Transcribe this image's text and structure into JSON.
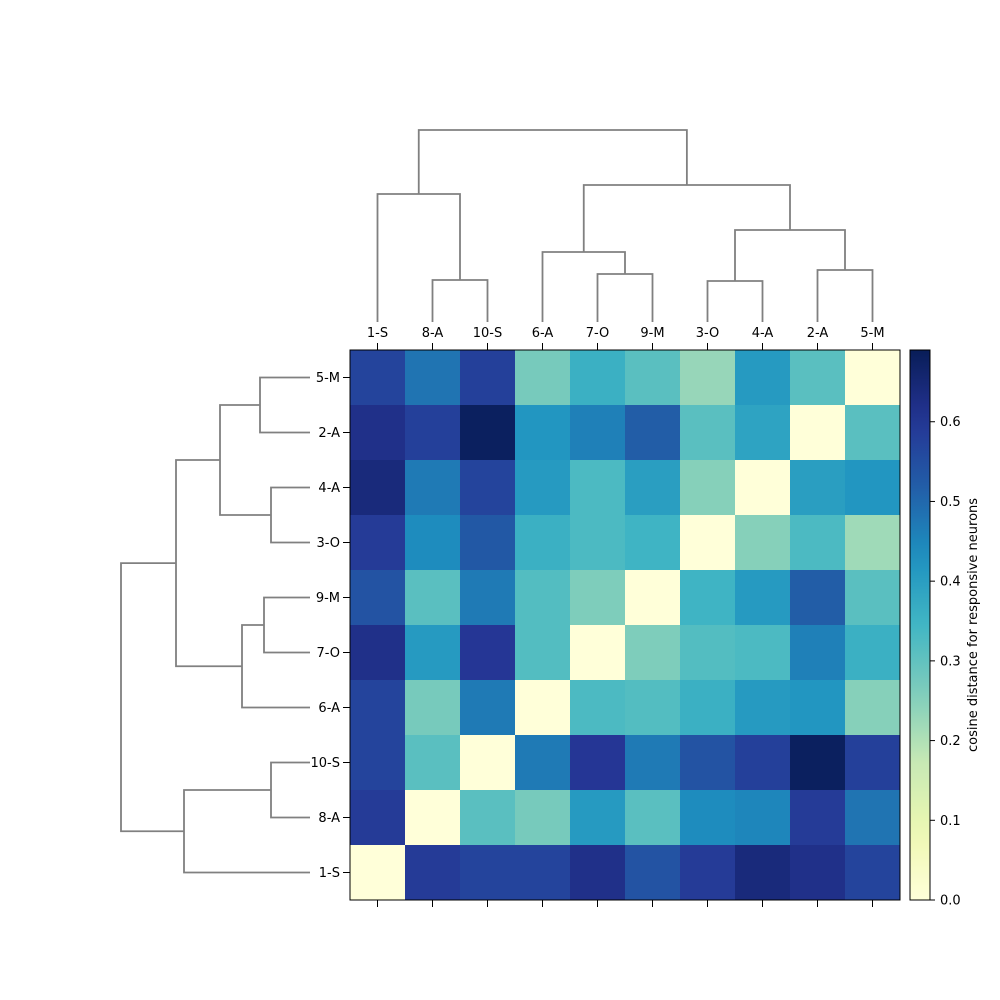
{
  "chart_data": {
    "type": "heatmap",
    "title": "",
    "xlabel": "",
    "ylabel": "",
    "columns": [
      "1-S",
      "8-A",
      "10-S",
      "6-A",
      "7-O",
      "9-M",
      "3-O",
      "4-A",
      "2-A",
      "5-M"
    ],
    "rows": [
      "5-M",
      "2-A",
      "4-A",
      "3-O",
      "9-M",
      "7-O",
      "6-A",
      "10-S",
      "8-A",
      "1-S"
    ],
    "values": [
      [
        0.57,
        0.48,
        0.58,
        0.27,
        0.36,
        0.31,
        0.23,
        0.41,
        0.31,
        0.0
      ],
      [
        0.62,
        0.58,
        0.68,
        0.42,
        0.46,
        0.52,
        0.31,
        0.39,
        0.0,
        0.31
      ],
      [
        0.64,
        0.47,
        0.57,
        0.41,
        0.33,
        0.4,
        0.25,
        0.0,
        0.4,
        0.42
      ],
      [
        0.59,
        0.44,
        0.53,
        0.36,
        0.33,
        0.35,
        0.0,
        0.25,
        0.33,
        0.22
      ],
      [
        0.54,
        0.31,
        0.47,
        0.32,
        0.26,
        0.0,
        0.35,
        0.41,
        0.52,
        0.31
      ],
      [
        0.62,
        0.41,
        0.6,
        0.32,
        0.0,
        0.26,
        0.32,
        0.33,
        0.46,
        0.36
      ],
      [
        0.57,
        0.27,
        0.47,
        0.0,
        0.33,
        0.32,
        0.36,
        0.41,
        0.42,
        0.25
      ],
      [
        0.57,
        0.31,
        0.0,
        0.47,
        0.6,
        0.47,
        0.54,
        0.58,
        0.68,
        0.58
      ],
      [
        0.59,
        0.0,
        0.31,
        0.27,
        0.41,
        0.31,
        0.44,
        0.45,
        0.59,
        0.48
      ],
      [
        0.0,
        0.59,
        0.57,
        0.57,
        0.62,
        0.54,
        0.59,
        0.64,
        0.62,
        0.57
      ]
    ],
    "colormap": "YlGnBu",
    "colorbar": {
      "label": "cosine distance for responsive neurons",
      "range": [
        0.0,
        0.69
      ],
      "ticks": [
        0.0,
        0.1,
        0.2,
        0.3,
        0.4,
        0.5,
        0.6
      ],
      "tick_labels": [
        "0.0",
        "0.1",
        "0.2",
        "0.3",
        "0.4",
        "0.5",
        "0.6"
      ]
    },
    "dendrogram_color": "#808080"
  }
}
